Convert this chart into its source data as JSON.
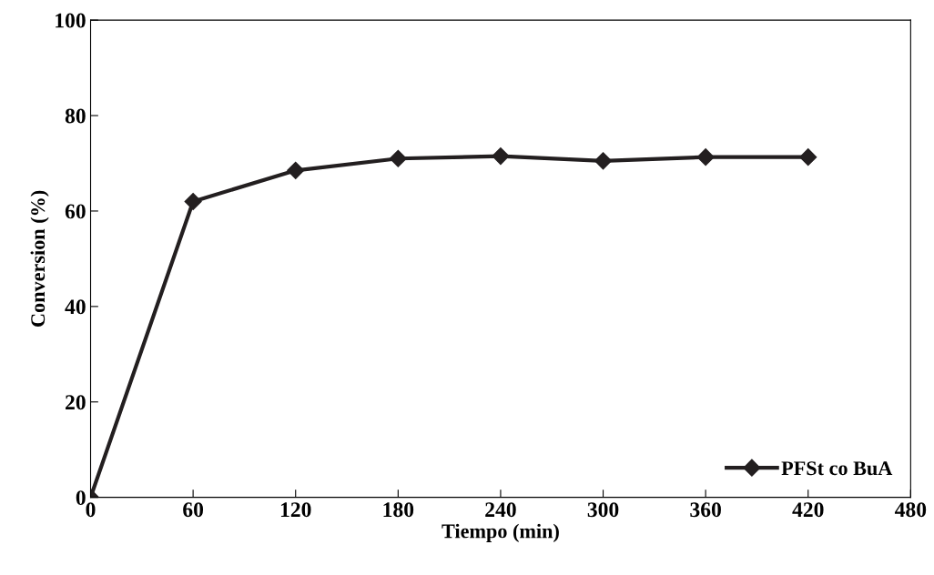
{
  "chart_data": {
    "type": "line",
    "xlabel": "Tiempo (min)",
    "ylabel": "Conversion (%)",
    "x": [
      0,
      60,
      120,
      180,
      240,
      300,
      360,
      420
    ],
    "series": [
      {
        "name": "PFSt co BuA",
        "color": "#231f20",
        "values": [
          0,
          62,
          68.5,
          71,
          71.5,
          70.5,
          71.3,
          71.3
        ]
      }
    ],
    "xlim": [
      0,
      480
    ],
    "xticks": [
      0,
      60,
      120,
      180,
      240,
      300,
      360,
      420,
      480
    ],
    "ylim": [
      0,
      100
    ],
    "yticks": [
      0,
      20,
      40,
      60,
      80,
      100
    ],
    "grid": false,
    "legend": "bottom right",
    "marker": "diamond",
    "line_style": "solid"
  }
}
